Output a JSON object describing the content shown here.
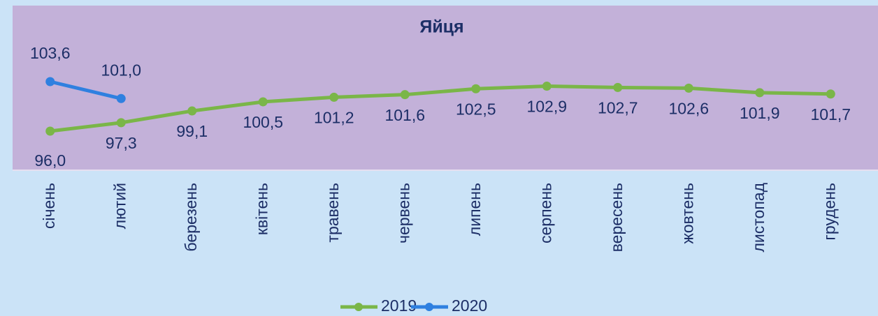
{
  "chart_data": {
    "type": "line",
    "title": "Яйця",
    "categories": [
      "січень",
      "лютий",
      "березень",
      "квітень",
      "травень",
      "червень",
      "липень",
      "серпень",
      "вересень",
      "жовтень",
      "листопад",
      "грудень"
    ],
    "series": [
      {
        "name": "2019",
        "color": "#7ab648",
        "values": [
          96.0,
          97.3,
          99.1,
          100.5,
          101.2,
          101.6,
          102.5,
          102.9,
          102.7,
          102.6,
          101.9,
          101.7
        ],
        "value_labels": [
          "96,0",
          "97,3",
          "99,1",
          "100,5",
          "101,2",
          "101,6",
          "102,5",
          "102,9",
          "102,7",
          "102,6",
          "101,9",
          "101,7"
        ]
      },
      {
        "name": "2020",
        "color": "#2f80e0",
        "values": [
          103.6,
          101.0,
          null,
          null,
          null,
          null,
          null,
          null,
          null,
          null,
          null,
          null
        ],
        "value_labels": [
          "103,6",
          "101,0",
          null,
          null,
          null,
          null,
          null,
          null,
          null,
          null,
          null,
          null
        ]
      }
    ]
  }
}
